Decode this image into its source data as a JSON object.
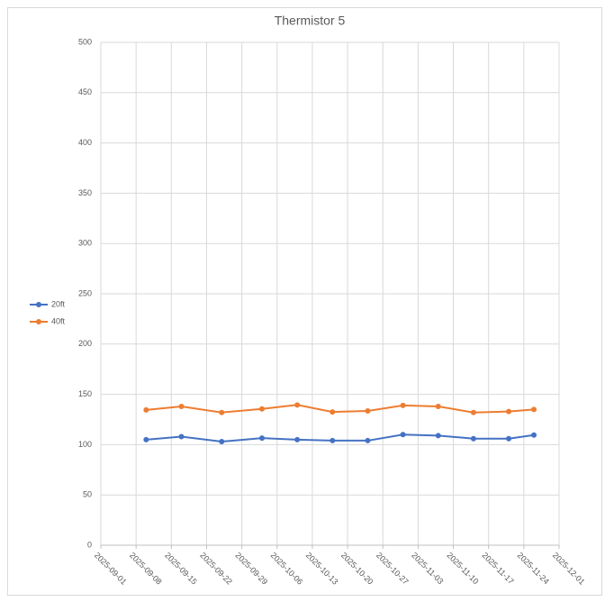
{
  "chart_data": {
    "type": "line",
    "title": "Thermistor 5",
    "x": [
      "2025-09-10",
      "2025-09-17",
      "2025-09-25",
      "2025-10-03",
      "2025-10-10",
      "2025-10-17",
      "2025-10-24",
      "2025-10-31",
      "2025-11-07",
      "2025-11-14",
      "2025-11-21",
      "2025-11-26"
    ],
    "series": [
      {
        "name": "20ft",
        "color": "#4472c4",
        "values": [
          105,
          108,
          103,
          106.5,
          105,
          104,
          104,
          110,
          109,
          106,
          106,
          109.5
        ]
      },
      {
        "name": "40ft",
        "color": "#ed7d31",
        "values": [
          134.5,
          138,
          132,
          135.5,
          139.5,
          132.5,
          133.5,
          139,
          138,
          132,
          133,
          135
        ]
      }
    ],
    "xlim": [
      "2025-09-01",
      "2025-12-01"
    ],
    "xticks": [
      "2025-09-01",
      "2025-09-08",
      "2025-09-15",
      "2025-09-22",
      "2025-09-29",
      "2025-10-06",
      "2025-10-13",
      "2025-10-20",
      "2025-10-27",
      "2025-11-03",
      "2025-11-10",
      "2025-11-17",
      "2025-11-24",
      "2025-12-01"
    ],
    "ylim": [
      0,
      500
    ],
    "yticks": [
      0,
      50,
      100,
      150,
      200,
      250,
      300,
      350,
      400,
      450,
      500
    ],
    "grid": true,
    "legend": "left"
  }
}
